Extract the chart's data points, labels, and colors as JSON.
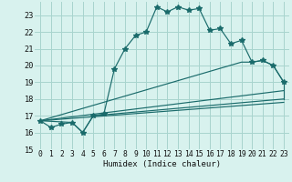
{
  "xlabel": "Humidex (Indice chaleur)",
  "bg_color": "#d8f2ee",
  "grid_color": "#a8d4ce",
  "line_color": "#1a6b6b",
  "xlim": [
    -0.5,
    23.5
  ],
  "ylim": [
    15.0,
    23.8
  ],
  "yticks": [
    15,
    16,
    17,
    18,
    19,
    20,
    21,
    22,
    23
  ],
  "xticks": [
    0,
    1,
    2,
    3,
    4,
    5,
    6,
    7,
    8,
    9,
    10,
    11,
    12,
    13,
    14,
    15,
    16,
    17,
    18,
    19,
    20,
    21,
    22,
    23
  ],
  "main_x": [
    0,
    1,
    2,
    3,
    4,
    5,
    6,
    7,
    8,
    9,
    10,
    11,
    12,
    13,
    14,
    15,
    16,
    17,
    18,
    19,
    20,
    21,
    22,
    23
  ],
  "main_y": [
    16.7,
    16.3,
    16.5,
    16.6,
    16.0,
    17.0,
    17.1,
    19.8,
    21.0,
    21.8,
    22.0,
    23.5,
    23.2,
    23.5,
    23.3,
    23.4,
    22.1,
    22.2,
    21.3,
    21.5,
    20.2,
    20.3,
    20.0,
    19.0
  ],
  "env_top_x": [
    0,
    19,
    20,
    21,
    22,
    23
  ],
  "env_top_y": [
    16.7,
    20.2,
    20.2,
    20.3,
    20.0,
    19.0
  ],
  "env_bot_x": [
    0,
    3,
    4,
    5,
    23
  ],
  "env_bot_y": [
    16.7,
    16.6,
    16.0,
    17.0,
    18.0
  ],
  "trend_x": [
    0,
    23
  ],
  "trend_y": [
    16.7,
    17.8
  ],
  "trend2_x": [
    0,
    23
  ],
  "trend2_y": [
    16.7,
    18.5
  ]
}
